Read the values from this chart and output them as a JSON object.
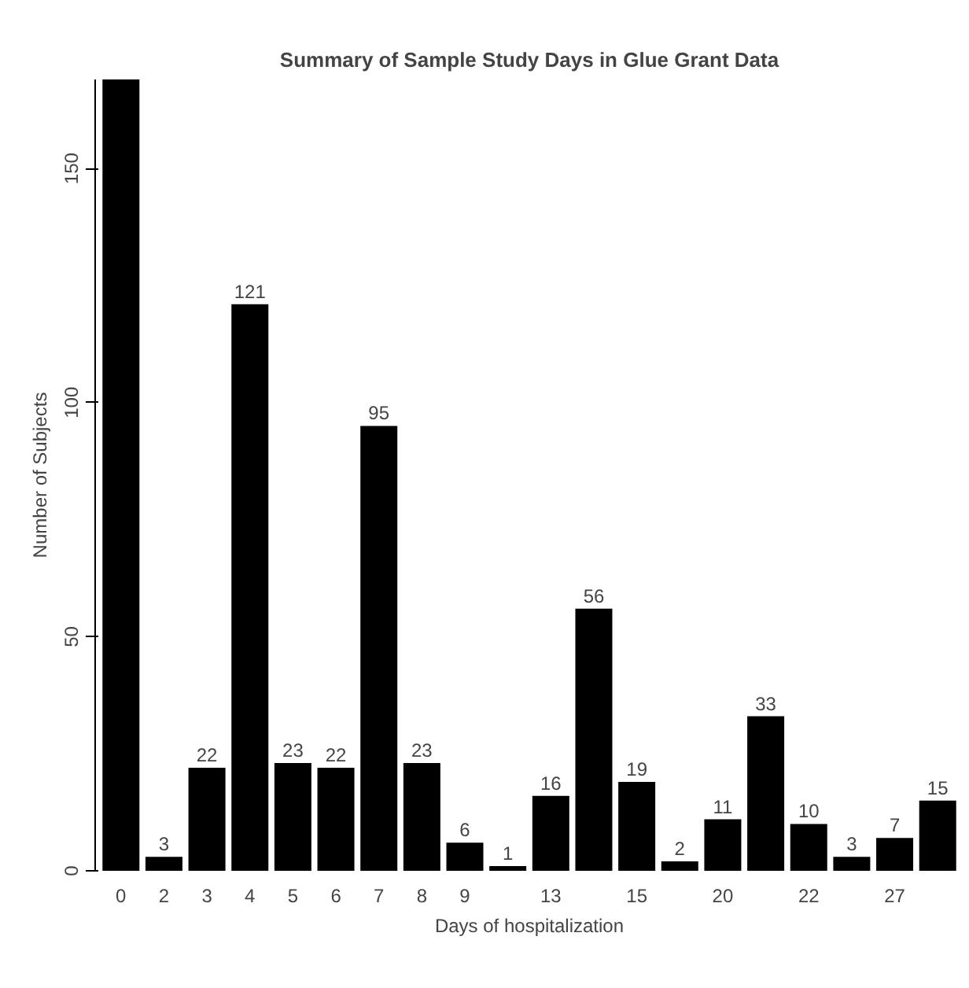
{
  "chart_data": {
    "type": "bar",
    "title": "Summary of Sample Study Days in Glue Grant Data",
    "xlabel": "Days of hospitalization",
    "ylabel": "Number of Subjects",
    "categories": [
      "0",
      "2",
      "3",
      "4",
      "5",
      "6",
      "7",
      "8",
      "9",
      null,
      "13",
      null,
      "15",
      null,
      "20",
      null,
      "22",
      null,
      "27",
      null
    ],
    "values": [
      169,
      3,
      22,
      121,
      23,
      22,
      95,
      23,
      6,
      1,
      16,
      56,
      19,
      2,
      11,
      33,
      10,
      3,
      7,
      15
    ],
    "value_labels": [
      null,
      "3",
      "22",
      "121",
      "23",
      "22",
      "95",
      "23",
      "6",
      "1",
      "16",
      "56",
      "19",
      "2",
      "11",
      "33",
      "10",
      "3",
      "7",
      "15"
    ],
    "color": "#000000",
    "ylim": [
      0,
      169
    ],
    "yticks": [
      0,
      50,
      100,
      150
    ],
    "grid": false
  }
}
